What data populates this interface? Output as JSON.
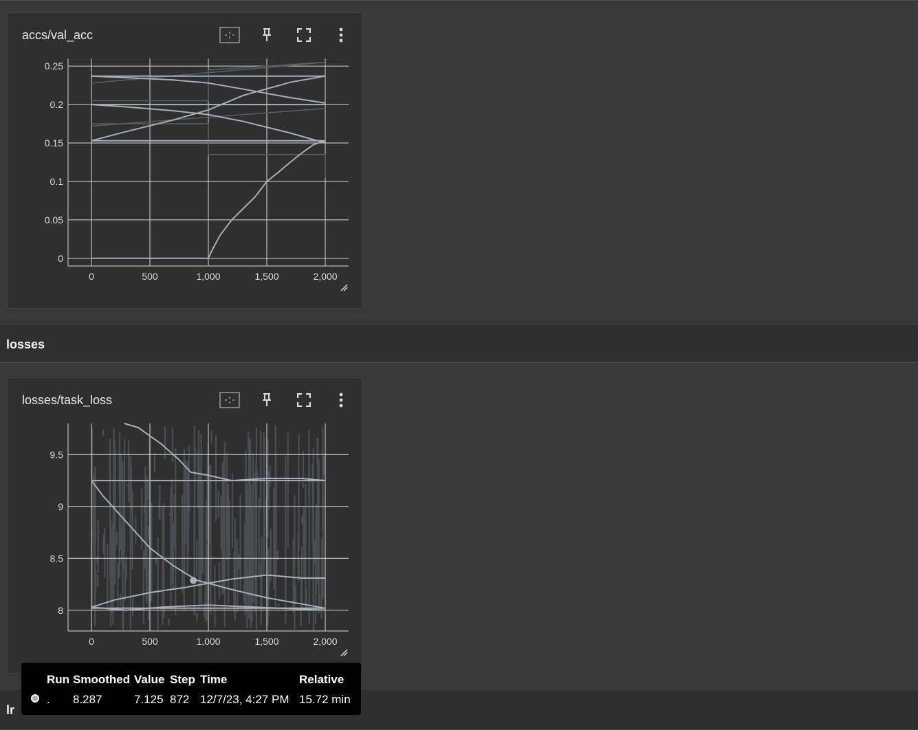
{
  "colors": {
    "background": "#383838",
    "card": "#2f2f2f",
    "line": "#a7b0bb",
    "raw": "#5a5d61"
  },
  "card1": {
    "title": "accs/val_acc",
    "icons": [
      "fit-domain-icon",
      "pin-icon",
      "fullscreen-icon",
      "more-vert-icon"
    ],
    "chart_data": {
      "type": "line",
      "title": "accs/val_acc",
      "xlabel": "",
      "ylabel": "",
      "xlim": [
        -200,
        2200
      ],
      "ylim": [
        -0.01,
        0.26
      ],
      "x_ticks": [
        "0",
        "500",
        "1,000",
        "1,500",
        "2,000"
      ],
      "y_ticks": [
        "0",
        "0.05",
        "0.1",
        "0.15",
        "0.2",
        "0.25"
      ],
      "grid": true,
      "series": [
        {
          "x": [
            0,
            1000,
            2000
          ],
          "y": [
            0.237,
            0.237,
            0.237
          ]
        },
        {
          "x": [
            0,
            2000
          ],
          "y": [
            0.2,
            0.2
          ]
        },
        {
          "x": [
            0,
            2000
          ],
          "y": [
            0.153,
            0.153
          ]
        },
        {
          "x": [
            0,
            1000
          ],
          "y": [
            0.0,
            0.0
          ]
        },
        {
          "x": [
            0,
            300,
            700,
            1000,
            1300,
            1700,
            2000
          ],
          "y": [
            0.237,
            0.235,
            0.232,
            0.228,
            0.22,
            0.209,
            0.202
          ]
        },
        {
          "x": [
            0,
            300,
            700,
            1000,
            1300,
            1700,
            2000
          ],
          "y": [
            0.2,
            0.197,
            0.192,
            0.187,
            0.178,
            0.163,
            0.15
          ]
        },
        {
          "x": [
            0,
            300,
            700,
            1000,
            1300,
            1700,
            2000
          ],
          "y": [
            0.153,
            0.165,
            0.18,
            0.193,
            0.212,
            0.229,
            0.237
          ]
        },
        {
          "x": [
            1000,
            1030,
            1100,
            1200,
            1300,
            1400,
            1500,
            1600,
            1700,
            1800,
            1900,
            2000
          ],
          "y": [
            0.0,
            0.01,
            0.03,
            0.05,
            0.065,
            0.08,
            0.1,
            0.112,
            0.125,
            0.137,
            0.148,
            0.153
          ]
        }
      ],
      "raw_series": [
        {
          "x": [
            0,
            1000,
            1000,
            2000,
            2000
          ],
          "y": [
            0.175,
            0.175,
            0.135,
            0.135,
            0.105
          ]
        },
        {
          "x": [
            0,
            1000,
            1000,
            2000
          ],
          "y": [
            0.205,
            0.205,
            0.245,
            0.255
          ]
        },
        {
          "x": [
            0,
            2000
          ],
          "y": [
            0.228,
            0.255
          ]
        },
        {
          "x": [
            0,
            2000
          ],
          "y": [
            0.172,
            0.195
          ]
        }
      ]
    }
  },
  "section_losses": {
    "label": "losses"
  },
  "card2": {
    "title": "losses/task_loss",
    "icons": [
      "fit-domain-icon",
      "pin-icon",
      "fullscreen-icon",
      "more-vert-icon"
    ],
    "chart_data": {
      "type": "line",
      "title": "losses/task_loss",
      "xlabel": "",
      "ylabel": "",
      "xlim": [
        -200,
        2200
      ],
      "ylim": [
        7.8,
        9.8
      ],
      "x_ticks": [
        "0",
        "500",
        "1,000",
        "1,500",
        "2,000"
      ],
      "y_ticks": [
        "8",
        "8.5",
        "9",
        "9.5"
      ],
      "grid": true,
      "series": [
        {
          "x": [
            280,
            400,
            600,
            750,
            850,
            1000,
            1200,
            1500,
            1800,
            2000
          ],
          "y": [
            9.8,
            9.76,
            9.6,
            9.45,
            9.33,
            9.3,
            9.25,
            9.27,
            9.27,
            9.25
          ]
        },
        {
          "x": [
            0,
            2000
          ],
          "y": [
            9.25,
            9.25
          ]
        },
        {
          "x": [
            0,
            100,
            300,
            500,
            700,
            900,
            1000,
            1200,
            1500,
            1800,
            2000
          ],
          "y": [
            9.25,
            9.1,
            8.85,
            8.6,
            8.43,
            8.29,
            8.26,
            8.2,
            8.12,
            8.06,
            8.02
          ]
        },
        {
          "x": [
            0,
            200,
            500,
            800,
            1000,
            1200,
            1500,
            1800,
            2000
          ],
          "y": [
            8.03,
            8.1,
            8.17,
            8.22,
            8.26,
            8.3,
            8.34,
            8.31,
            8.31
          ]
        },
        {
          "x": [
            0,
            300,
            600,
            1000,
            1400,
            1800,
            2000
          ],
          "y": [
            8.03,
            8.0,
            8.03,
            8.05,
            8.03,
            8.01,
            8.0
          ]
        },
        {
          "x": [
            0,
            2000
          ],
          "y": [
            8.02,
            8.02
          ]
        }
      ],
      "highlight": {
        "x": 872,
        "y": 8.287
      }
    }
  },
  "tooltip": {
    "headers": {
      "run": "Run",
      "smoothed": "Smoothed",
      "value": "Value",
      "step": "Step",
      "time": "Time",
      "relative": "Relative"
    },
    "row": {
      "run": ".",
      "smoothed": "8.287",
      "value": "7.125",
      "step": "872",
      "time": "12/7/23, 4:27 PM",
      "relative": "15.72 min"
    }
  },
  "section_lr": {
    "label": "lr"
  }
}
